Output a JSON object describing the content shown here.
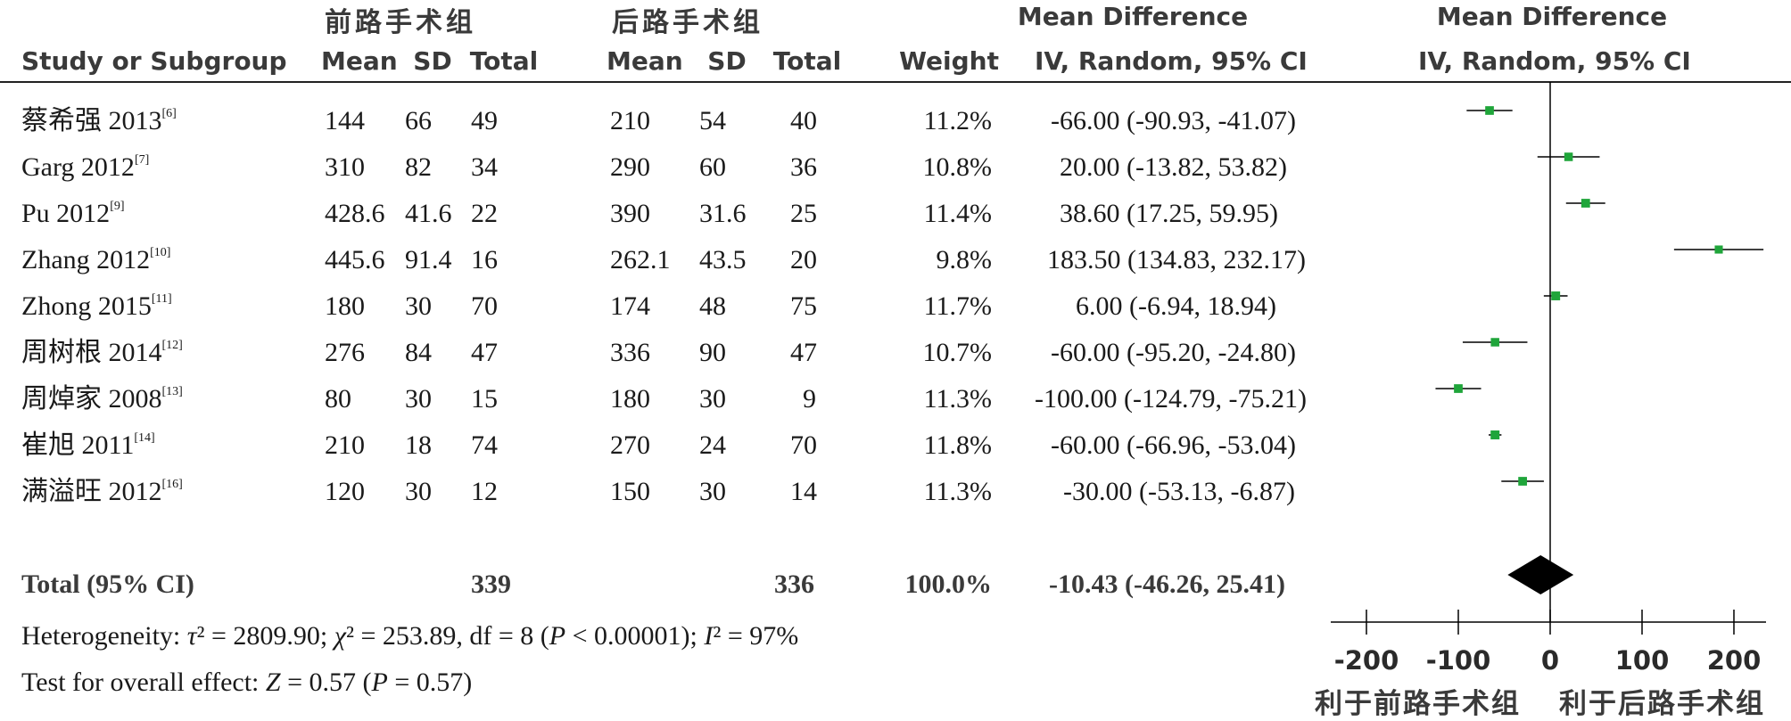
{
  "headers": {
    "group1": "前路手术组",
    "group2": "后路手术组",
    "md_top_table": "Mean Difference",
    "md_top_plot": "Mean Difference",
    "study": "Study or Subgroup",
    "mean1": "Mean",
    "sd1": "SD",
    "total1": "Total",
    "mean2": "Mean",
    "sd2": "SD",
    "total2": "Total",
    "weight": "Weight",
    "ci_table": "IV, Random, 95% CI",
    "ci_plot": "IV, Random, 95% CI"
  },
  "studies": [
    {
      "name": "蔡希强 2013",
      "ref": "[6]",
      "mean1": "144",
      "sd1": "66",
      "total1": "49",
      "mean2": "210",
      "sd2": "54",
      "total2": "40",
      "weight": "11.2%",
      "ci_text": "-66.00 (-90.93, -41.07)"
    },
    {
      "name": "Garg 2012",
      "ref": "[7]",
      "mean1": "310",
      "sd1": "82",
      "total1": "34",
      "mean2": "290",
      "sd2": "60",
      "total2": "36",
      "weight": "10.8%",
      "ci_text": "20.00 (-13.82, 53.82)"
    },
    {
      "name": "Pu 2012",
      "ref": "[9]",
      "mean1": "428.6",
      "sd1": "41.6",
      "total1": "22",
      "mean2": "390",
      "sd2": "31.6",
      "total2": "25",
      "weight": "11.4%",
      "ci_text": "38.60 (17.25, 59.95)"
    },
    {
      "name": "Zhang 2012",
      "ref": "[10]",
      "mean1": "445.6",
      "sd1": "91.4",
      "total1": "16",
      "mean2": "262.1",
      "sd2": "43.5",
      "total2": "20",
      "weight": "9.8%",
      "ci_text": "183.50 (134.83, 232.17)"
    },
    {
      "name": "Zhong 2015",
      "ref": "[11]",
      "mean1": "180",
      "sd1": "30",
      "total1": "70",
      "mean2": "174",
      "sd2": "48",
      "total2": "75",
      "weight": "11.7%",
      "ci_text": "6.00 (-6.94, 18.94)"
    },
    {
      "name": "周树根 2014",
      "ref": "[12]",
      "mean1": "276",
      "sd1": "84",
      "total1": "47",
      "mean2": "336",
      "sd2": "90",
      "total2": "47",
      "weight": "10.7%",
      "ci_text": "-60.00 (-95.20, -24.80)"
    },
    {
      "name": "周焯家 2008",
      "ref": "[13]",
      "mean1": "80",
      "sd1": "30",
      "total1": "15",
      "mean2": "180",
      "sd2": "30",
      "total2": "9",
      "weight": "11.3%",
      "ci_text": "-100.00 (-124.79, -75.21)"
    },
    {
      "name": "崔旭 2011",
      "ref": "[14]",
      "mean1": "210",
      "sd1": "18",
      "total1": "74",
      "mean2": "270",
      "sd2": "24",
      "total2": "70",
      "weight": "11.8%",
      "ci_text": "-60.00 (-66.96, -53.04)"
    },
    {
      "name": "满溢旺 2012",
      "ref": "[16]",
      "mean1": "120",
      "sd1": "30",
      "total1": "12",
      "mean2": "150",
      "sd2": "30",
      "total2": "14",
      "weight": "11.3%",
      "ci_text": "-30.00 (-53.13, -6.87)"
    }
  ],
  "total": {
    "label": "Total (95% CI)",
    "total1": "339",
    "total2": "336",
    "weight": "100.0%",
    "ci_text": "-10.43 (-46.26, 25.41)"
  },
  "heterogeneity": {
    "prefix": "Heterogeneity: ",
    "tau_sym": "τ",
    "tau_value": "² = 2809.90; ",
    "chi_sym": "χ",
    "chi_value": "² = 253.89, df = 8 (",
    "p_sym": "P",
    "p_value": " < 0.00001); ",
    "i_sym": "I",
    "i_value": "² = 97%"
  },
  "overall": {
    "prefix": "Test for overall effect: ",
    "z_sym": "Z",
    "z_value": " = 0.57 (",
    "p_sym": "P",
    "p_value": " = 0.57)"
  },
  "favours": {
    "left": "利于前路手术组",
    "right": "利于后路手术组"
  },
  "colors": {
    "marker": "#1fa53a",
    "diamond": "#000000",
    "text": "#1a1a1a",
    "header": "#3a3a3a"
  },
  "chart_data": {
    "type": "forest",
    "xlim": [
      -200,
      200
    ],
    "ticks": [
      -200,
      -100,
      0,
      100,
      200
    ],
    "tick_labels": [
      "-200",
      "-100",
      "0",
      "100",
      "200"
    ],
    "points": [
      {
        "est": -66.0,
        "lo": -90.93,
        "hi": -41.07,
        "weight": 11.2
      },
      {
        "est": 20.0,
        "lo": -13.82,
        "hi": 53.82,
        "weight": 10.8
      },
      {
        "est": 38.6,
        "lo": 17.25,
        "hi": 59.95,
        "weight": 11.4
      },
      {
        "est": 183.5,
        "lo": 134.83,
        "hi": 232.17,
        "weight": 9.8
      },
      {
        "est": 6.0,
        "lo": -6.94,
        "hi": 18.94,
        "weight": 11.7
      },
      {
        "est": -60.0,
        "lo": -95.2,
        "hi": -24.8,
        "weight": 10.7
      },
      {
        "est": -100.0,
        "lo": -124.79,
        "hi": -75.21,
        "weight": 11.3
      },
      {
        "est": -60.0,
        "lo": -66.96,
        "hi": -53.04,
        "weight": 11.8
      },
      {
        "est": -30.0,
        "lo": -53.13,
        "hi": -6.87,
        "weight": 11.3
      }
    ],
    "pooled": {
      "est": -10.43,
      "lo": -46.26,
      "hi": 25.41
    }
  }
}
